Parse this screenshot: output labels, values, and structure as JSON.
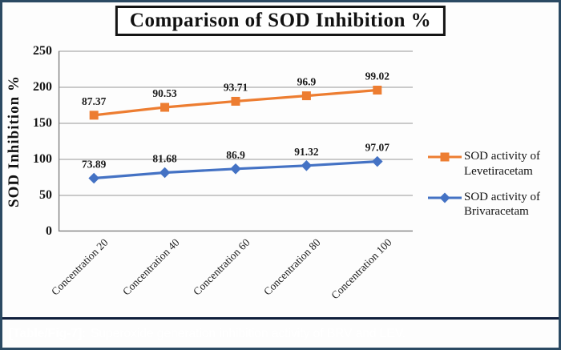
{
  "figure": {
    "title": "Comparison of SOD Inhibition %",
    "caption": {
      "label": "[Table/Fig-7]:",
      "text": "Superoxide generation inhibition activity of BRV and LEV."
    }
  },
  "colors": {
    "levetiracetam_orange": "#ED7D31",
    "brivaracetam_blue": "#4472C4",
    "caption_bar": "#27509B",
    "caption_text": "#FFFFFF",
    "outer_border": "#2B4A63",
    "gridline": "#ADADAD",
    "axis_line": "#808080",
    "text": "#1A1A1A"
  },
  "chart_data": {
    "type": "line",
    "title": "Comparison of SOD Inhibition %",
    "xlabel": "",
    "ylabel": "SOD Inhibition %",
    "ylim": [
      0,
      250
    ],
    "yticks": [
      0,
      50,
      100,
      150,
      200,
      250
    ],
    "grid": "horizontal",
    "legend_position": "right",
    "data_labels": true,
    "stacking_note": "Levetiracetam line is rendered stacked on top of Brivaracetam values (stacked line chart); data labels show the un-stacked values",
    "categories": [
      "Concentration 20",
      "Concentration 40",
      "Concentration 60",
      "Concentration 80",
      "Concentration 100"
    ],
    "series": [
      {
        "name": "SOD activity of Levetiracetam",
        "marker": "square",
        "color": "#ED7D31",
        "values": [
          87.37,
          90.53,
          93.71,
          96.9,
          99.02
        ],
        "stacked_on": "SOD activity of Brivaracetam"
      },
      {
        "name": "SOD activity of Brivaracetam",
        "marker": "diamond",
        "color": "#4472C4",
        "values": [
          73.89,
          81.68,
          86.9,
          91.32,
          97.07
        ]
      }
    ]
  }
}
